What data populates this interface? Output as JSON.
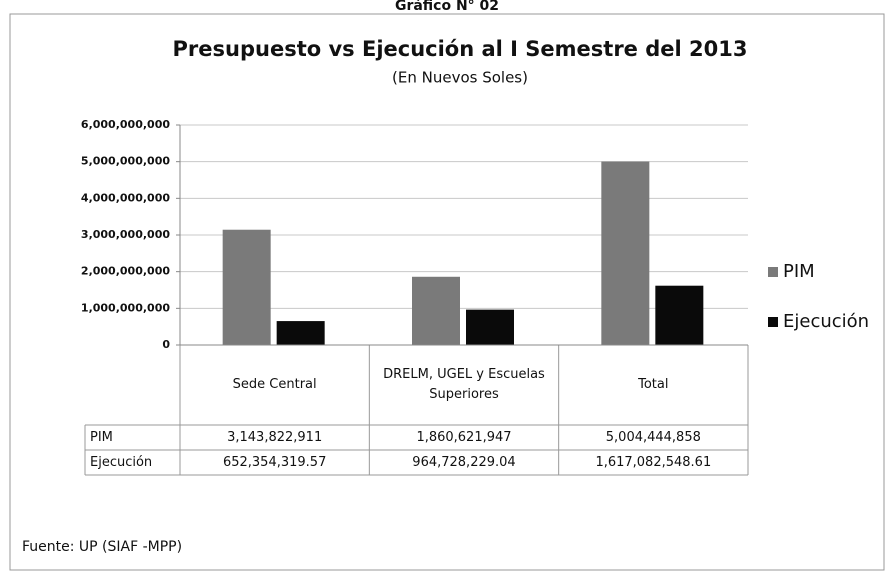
{
  "chart_data": {
    "type": "bar",
    "heading": "Gráfico N° 02",
    "title": "Presupuesto vs Ejecución al I Semestre del 2013",
    "subtitle": "(En Nuevos Soles)",
    "categories": [
      "Sede Central",
      "DRELM, UGEL y Escuelas Superiores",
      "Total"
    ],
    "series": [
      {
        "name": "PIM",
        "color": "#7a7a7a",
        "values": [
          3143822911,
          1860621947,
          5004444858
        ],
        "value_labels": [
          "3,143,822,911",
          "1,860,621,947",
          "5,004,444,858"
        ]
      },
      {
        "name": "Ejecución",
        "color": "#0a0a0a",
        "values": [
          652354319.57,
          964728229.04,
          1617082548.61
        ],
        "value_labels": [
          "652,354,319.57",
          "964,728,229.04",
          "1,617,082,548.61"
        ]
      }
    ],
    "ylim": [
      0,
      6000000000
    ],
    "yticks": [
      {
        "value": 0,
        "label": "0"
      },
      {
        "value": 1000000000,
        "label": "1,000,000,000"
      },
      {
        "value": 2000000000,
        "label": "2,000,000,000"
      },
      {
        "value": 3000000000,
        "label": "3,000,000,000"
      },
      {
        "value": 4000000000,
        "label": "4,000,000,000"
      },
      {
        "value": 5000000000,
        "label": "5,000,000,000"
      },
      {
        "value": 6000000000,
        "label": "6,000,000,000"
      }
    ],
    "grid": true,
    "legend": "right",
    "source": "Fuente: UP (SIAF -MPP)"
  }
}
